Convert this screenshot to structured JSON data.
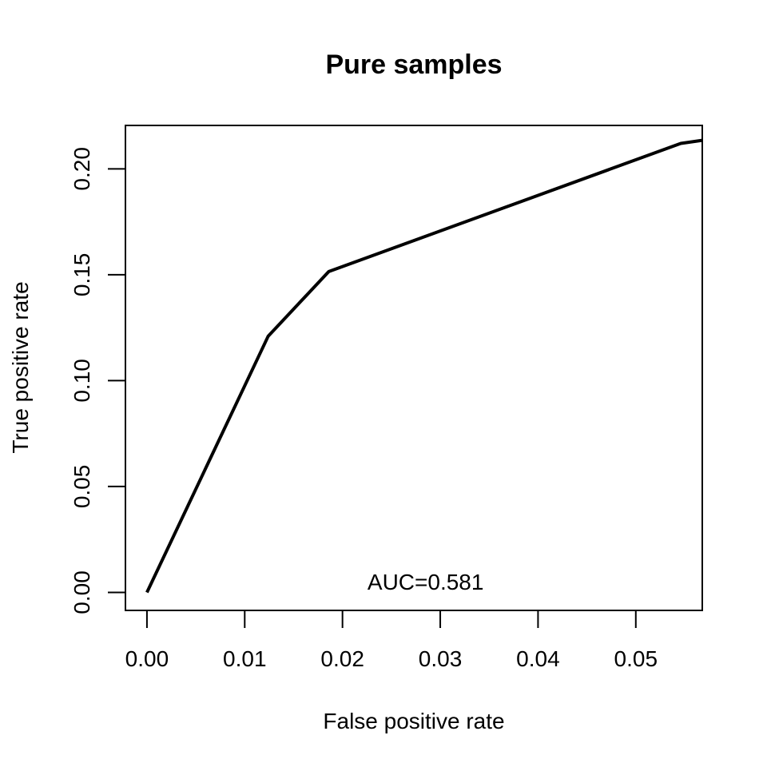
{
  "chart_data": {
    "type": "line",
    "title": "Pure samples",
    "xlabel": "False positive rate",
    "ylabel": "True positive rate",
    "xlim": [
      -0.0022,
      0.0568
    ],
    "ylim": [
      -0.0085,
      0.2205
    ],
    "x_ticks": [
      0.0,
      0.01,
      0.02,
      0.03,
      0.04,
      0.05
    ],
    "x_tick_labels": [
      "0.00",
      "0.01",
      "0.02",
      "0.03",
      "0.04",
      "0.05"
    ],
    "y_ticks": [
      0.0,
      0.05,
      0.1,
      0.15,
      0.2
    ],
    "y_tick_labels": [
      "0.00",
      "0.05",
      "0.10",
      "0.15",
      "0.20"
    ],
    "grid": false,
    "series": [
      {
        "color": "#000000",
        "x": [
          0.0,
          0.0124,
          0.0186,
          0.0546,
          0.0568
        ],
        "y": [
          0.0,
          0.121,
          0.1515,
          0.212,
          0.2135
        ]
      }
    ],
    "annotations": [
      {
        "text": "AUC=0.581",
        "x": 0.0285,
        "y": 0.005
      }
    ]
  }
}
